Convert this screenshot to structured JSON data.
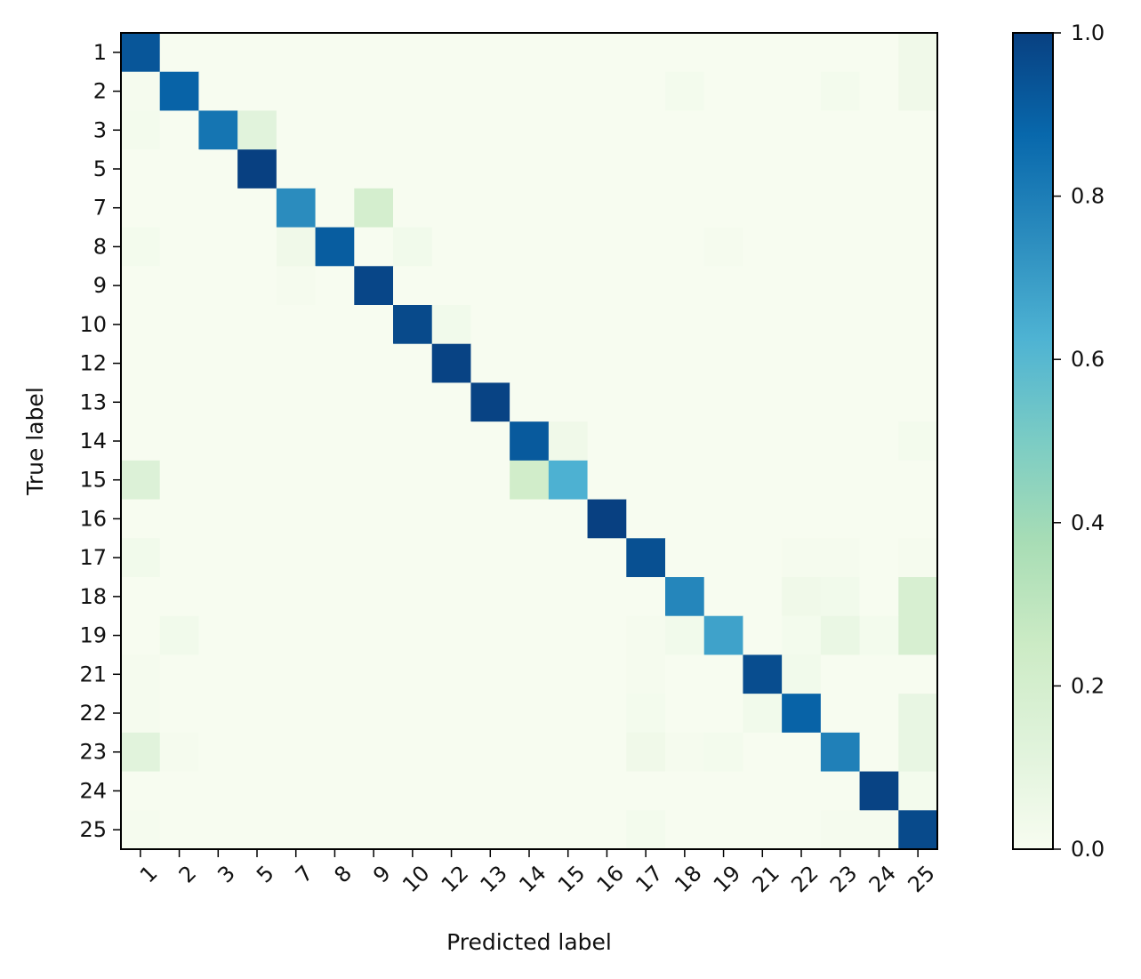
{
  "chart_data": {
    "type": "heatmap",
    "title": "",
    "xlabel": "Predicted label",
    "ylabel": "True label",
    "x_categories": [
      "1",
      "2",
      "3",
      "5",
      "7",
      "8",
      "9",
      "10",
      "12",
      "13",
      "14",
      "15",
      "16",
      "17",
      "18",
      "19",
      "21",
      "22",
      "23",
      "24",
      "25"
    ],
    "y_categories": [
      "1",
      "2",
      "3",
      "5",
      "7",
      "8",
      "9",
      "10",
      "12",
      "13",
      "14",
      "15",
      "16",
      "17",
      "18",
      "19",
      "21",
      "22",
      "23",
      "24",
      "25"
    ],
    "colormap": "GnBu",
    "colorbar": {
      "min": 0.0,
      "max": 1.0,
      "ticks": [
        0.0,
        0.2,
        0.4,
        0.6,
        0.8,
        1.0
      ],
      "tick_labels": [
        "0.0",
        "0.2",
        "0.4",
        "0.6",
        "0.8",
        "1.0"
      ]
    },
    "values": [
      [
        0.93,
        0,
        0,
        0,
        0,
        0,
        0,
        0,
        0,
        0,
        0,
        0,
        0,
        0,
        0,
        0,
        0,
        0,
        0,
        0,
        0.04
      ],
      [
        0.01,
        0.89,
        0,
        0,
        0,
        0,
        0,
        0,
        0,
        0,
        0,
        0,
        0,
        0,
        0.02,
        0,
        0,
        0,
        0.02,
        0,
        0.04
      ],
      [
        0.02,
        0,
        0.83,
        0.12,
        0,
        0,
        0,
        0,
        0,
        0,
        0,
        0,
        0,
        0,
        0,
        0,
        0,
        0,
        0,
        0,
        0
      ],
      [
        0,
        0,
        0,
        1.0,
        0,
        0,
        0,
        0,
        0,
        0,
        0,
        0,
        0,
        0,
        0,
        0,
        0,
        0,
        0,
        0,
        0
      ],
      [
        0,
        0,
        0,
        0,
        0.75,
        0,
        0.2,
        0,
        0,
        0,
        0,
        0,
        0,
        0,
        0,
        0,
        0,
        0,
        0,
        0,
        0
      ],
      [
        0.02,
        0,
        0,
        0,
        0.04,
        0.91,
        0,
        0.03,
        0,
        0,
        0,
        0,
        0,
        0,
        0,
        0.01,
        0,
        0,
        0,
        0,
        0
      ],
      [
        0,
        0,
        0,
        0,
        0.01,
        0,
        0.98,
        0,
        0,
        0,
        0,
        0,
        0,
        0,
        0,
        0,
        0,
        0,
        0,
        0,
        0
      ],
      [
        0,
        0,
        0,
        0,
        0,
        0,
        0,
        0.97,
        0.03,
        0,
        0,
        0,
        0,
        0,
        0,
        0,
        0,
        0,
        0,
        0,
        0
      ],
      [
        0,
        0,
        0,
        0,
        0,
        0,
        0,
        0,
        0.99,
        0,
        0,
        0,
        0,
        0,
        0,
        0,
        0,
        0,
        0,
        0,
        0
      ],
      [
        0,
        0,
        0,
        0,
        0,
        0,
        0,
        0,
        0,
        0.99,
        0,
        0,
        0,
        0,
        0,
        0,
        0,
        0,
        0,
        0,
        0
      ],
      [
        0,
        0,
        0,
        0,
        0,
        0,
        0,
        0,
        0,
        0,
        0.92,
        0.04,
        0,
        0,
        0,
        0,
        0,
        0,
        0,
        0,
        0.02
      ],
      [
        0.15,
        0,
        0,
        0,
        0,
        0,
        0,
        0,
        0,
        0,
        0.22,
        0.63,
        0,
        0,
        0,
        0,
        0,
        0,
        0,
        0,
        0
      ],
      [
        0,
        0,
        0,
        0,
        0,
        0,
        0,
        0,
        0,
        0,
        0,
        0,
        1.0,
        0,
        0,
        0,
        0,
        0,
        0,
        0,
        0
      ],
      [
        0.03,
        0,
        0,
        0,
        0,
        0,
        0,
        0,
        0,
        0,
        0,
        0,
        0,
        0.95,
        0,
        0,
        0,
        0.01,
        0.01,
        0,
        0.01
      ],
      [
        0,
        0,
        0,
        0,
        0,
        0,
        0,
        0,
        0,
        0,
        0,
        0,
        0,
        0,
        0.77,
        0,
        0,
        0.04,
        0.03,
        0,
        0.18
      ],
      [
        0,
        0.03,
        0,
        0,
        0,
        0,
        0,
        0,
        0,
        0,
        0,
        0,
        0,
        0.01,
        0.03,
        0.68,
        0,
        0.02,
        0.07,
        0.02,
        0.18
      ],
      [
        0.01,
        0,
        0,
        0,
        0,
        0,
        0,
        0,
        0,
        0,
        0,
        0,
        0,
        0.01,
        0,
        0,
        0.96,
        0.03,
        0,
        0,
        0
      ],
      [
        0.01,
        0,
        0,
        0,
        0,
        0,
        0,
        0,
        0,
        0,
        0,
        0,
        0,
        0.02,
        0,
        0,
        0.03,
        0.89,
        0,
        0,
        0.08
      ],
      [
        0.12,
        0.01,
        0,
        0,
        0,
        0,
        0,
        0,
        0,
        0,
        0,
        0,
        0,
        0.04,
        0.01,
        0.02,
        0,
        0,
        0.79,
        0,
        0.08
      ],
      [
        0,
        0,
        0,
        0,
        0,
        0,
        0,
        0,
        0,
        0,
        0,
        0,
        0,
        0,
        0,
        0,
        0,
        0,
        0,
        0.99,
        0.02
      ],
      [
        0.01,
        0,
        0,
        0,
        0,
        0,
        0,
        0,
        0,
        0,
        0,
        0,
        0,
        0.02,
        0,
        0,
        0,
        0,
        0.01,
        0.01,
        0.97
      ]
    ]
  }
}
